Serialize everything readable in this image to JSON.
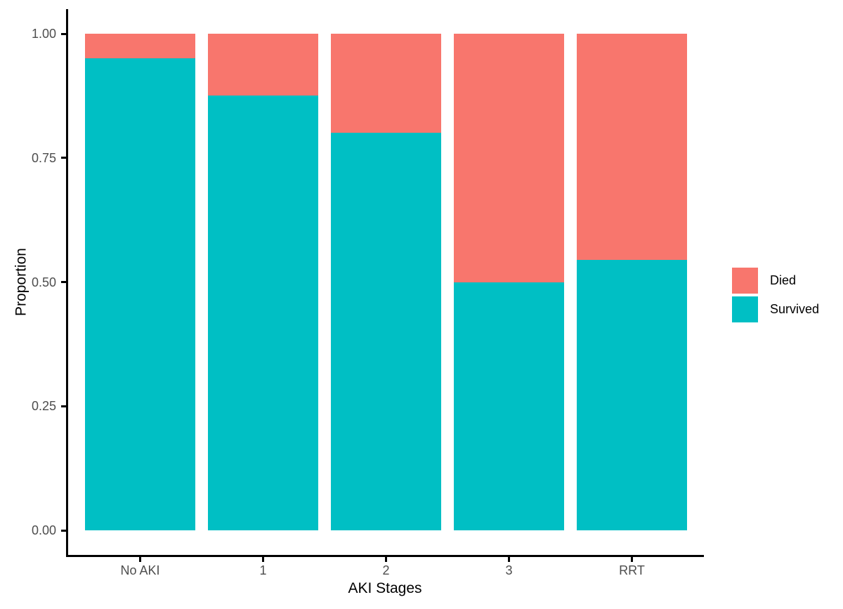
{
  "chart_data": {
    "type": "bar",
    "stacked": true,
    "title": "",
    "xlabel": "AKI Stages",
    "ylabel": "Proportion",
    "categories": [
      "No AKI",
      "1",
      "2",
      "3",
      "RRT"
    ],
    "series": [
      {
        "name": "Died",
        "color": "#F8766D",
        "values": [
          0.05,
          0.125,
          0.2,
          0.5,
          0.455
        ]
      },
      {
        "name": "Survived",
        "color": "#00BFC4",
        "values": [
          0.95,
          0.875,
          0.8,
          0.5,
          0.545
        ]
      }
    ],
    "ylim": [
      0,
      1
    ],
    "ytick_values": [
      0,
      0.25,
      0.5,
      0.75,
      1.0
    ],
    "yticks": [
      "0.00",
      "0.25",
      "0.50",
      "0.75",
      "1.00"
    ],
    "grid": false,
    "legend": {
      "position": "right",
      "title": "",
      "entries": [
        {
          "label": "Died",
          "color": "#F8766D"
        },
        {
          "label": "Survived",
          "color": "#00BFC4"
        }
      ]
    }
  },
  "colors": {
    "died": "#F8766D",
    "survived": "#00BFC4",
    "axis_line": "#000000",
    "tick_text": "#4d4d4d",
    "title_text": "#000000",
    "background": "#ffffff"
  }
}
